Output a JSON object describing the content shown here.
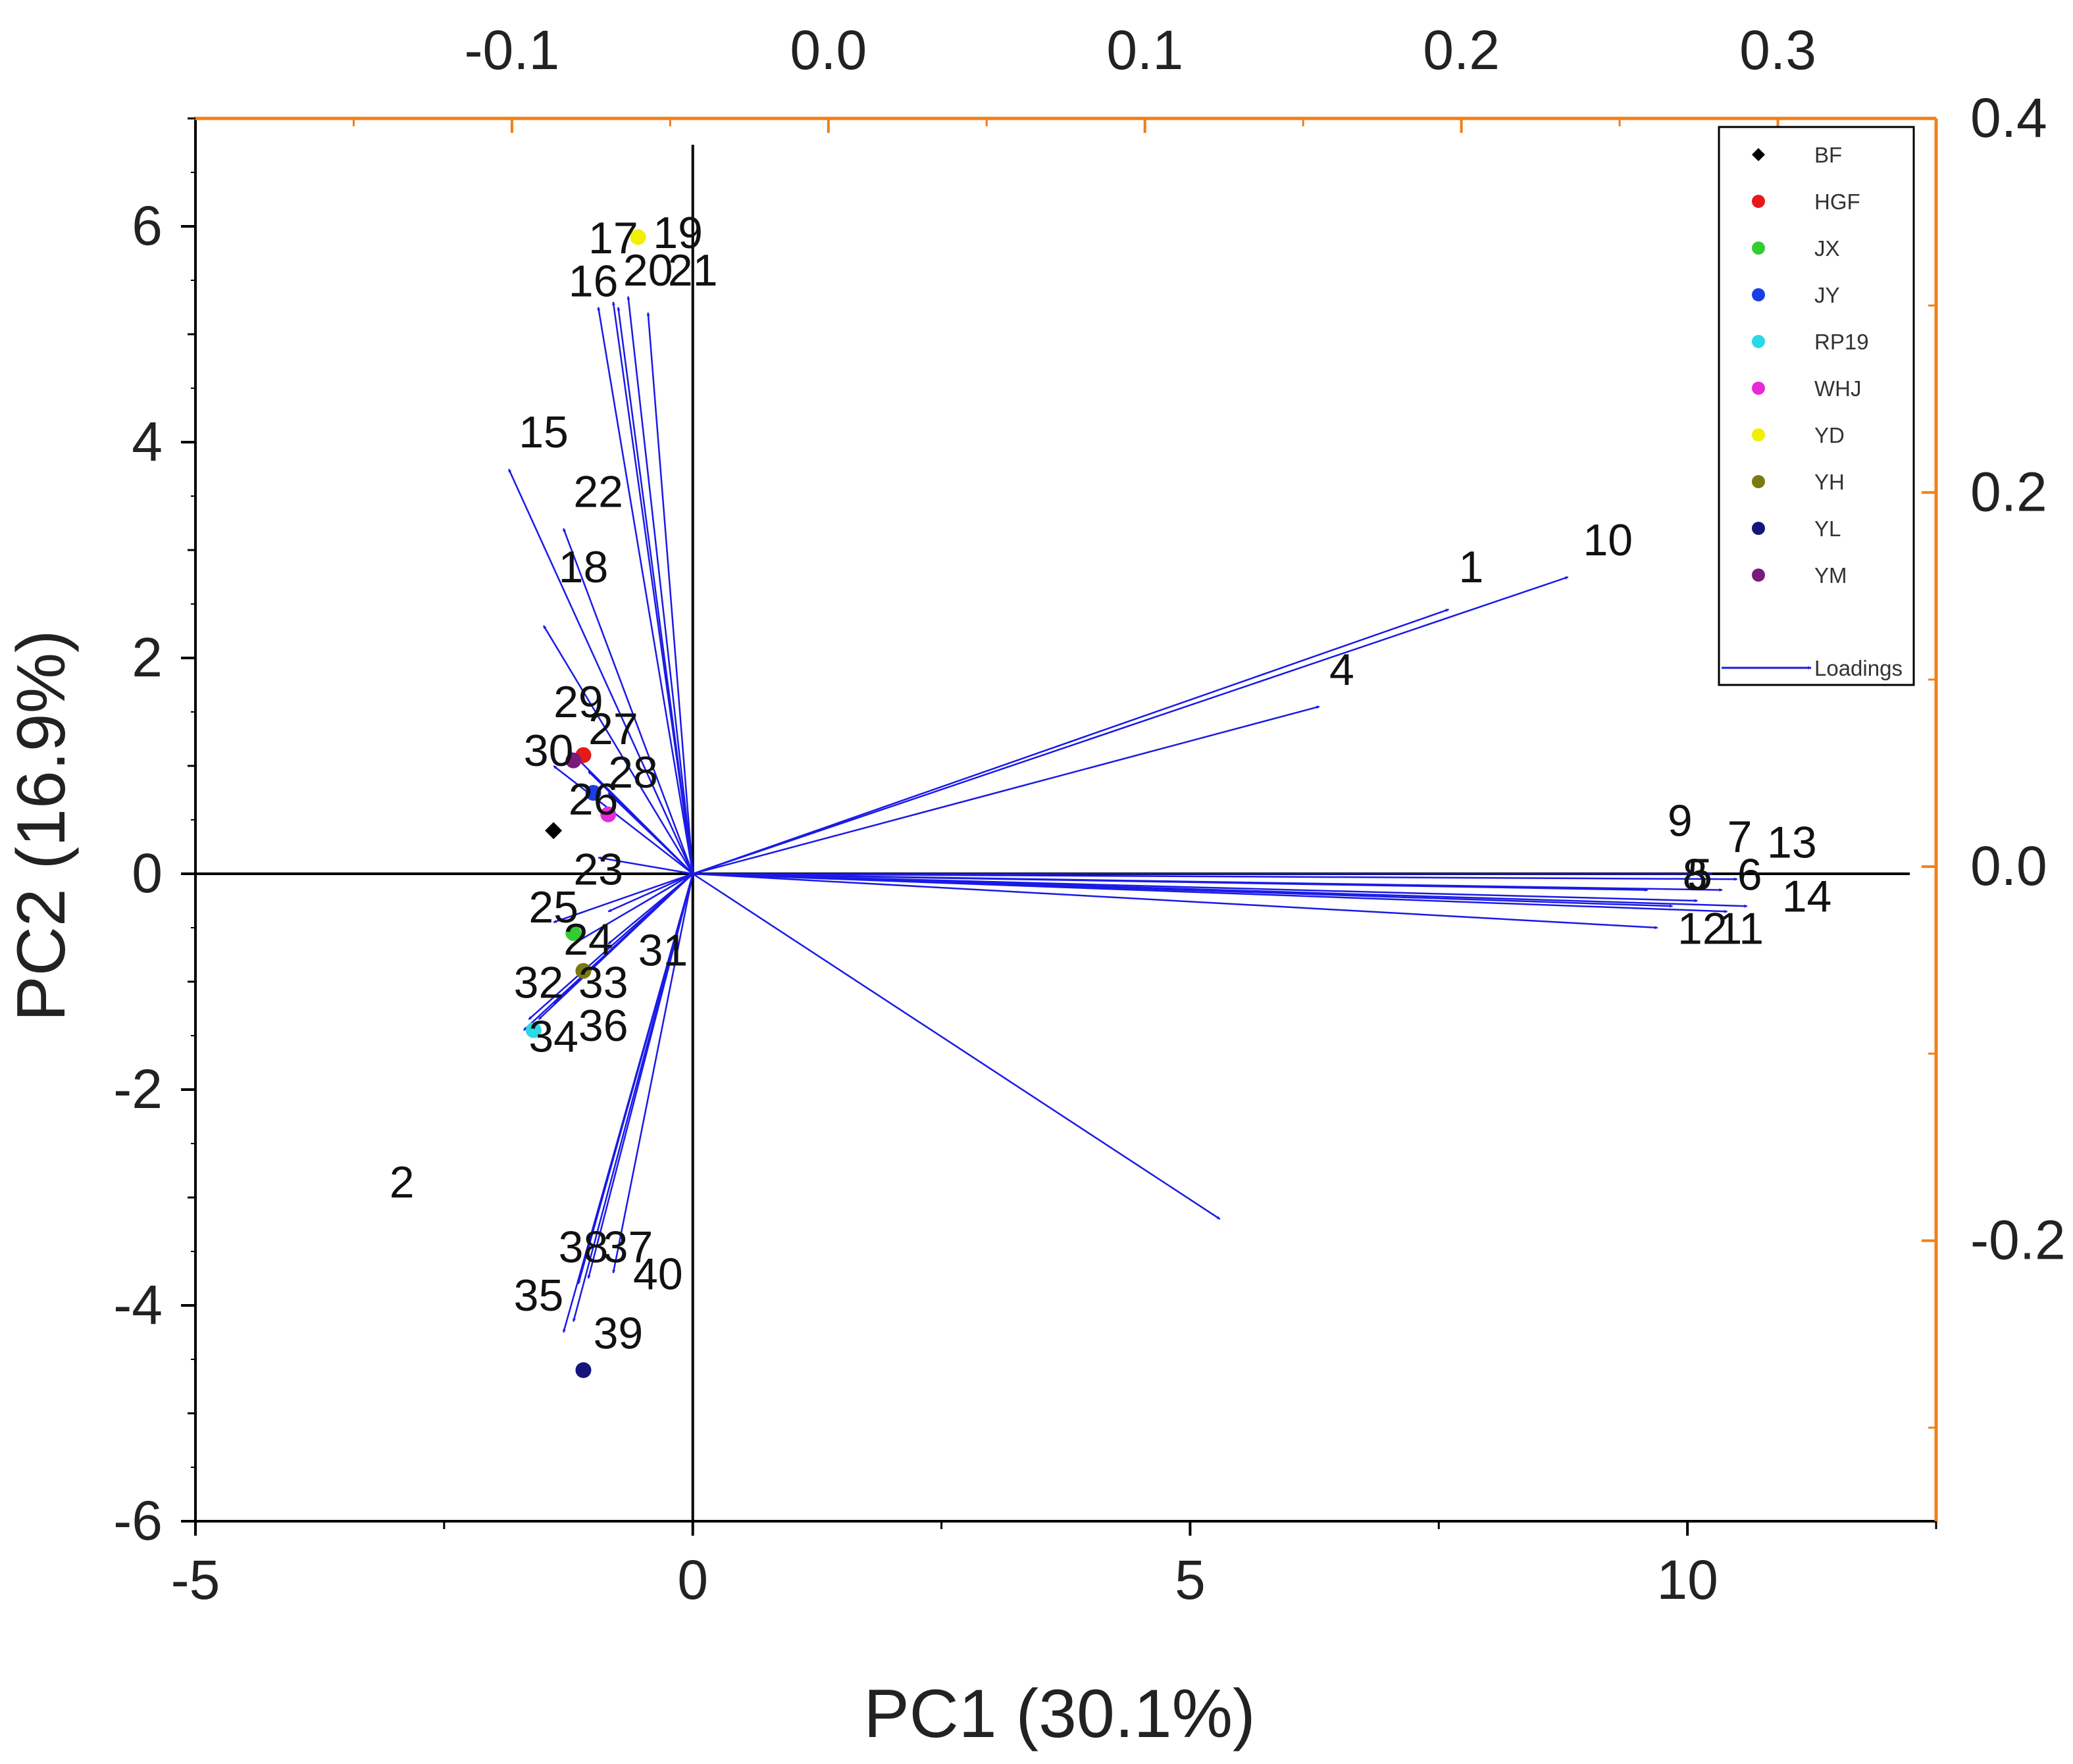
{
  "chart_data": {
    "type": "scatter",
    "title": "",
    "xlabel": "PC1 (30.1%)",
    "ylabel": "PC2 (16.9%)",
    "xlim": [
      -5,
      12.5
    ],
    "ylim": [
      -6,
      7
    ],
    "x_ticks": [
      -5,
      0,
      5,
      10
    ],
    "y_ticks": [
      -6,
      -4,
      -2,
      0,
      2,
      4,
      6
    ],
    "top_axis": {
      "lim": [
        -0.2,
        0.35
      ],
      "ticks": [
        "-0.1",
        "0.0",
        "0.1",
        "0.2",
        "0.3"
      ],
      "tick_values": [
        -0.1,
        0.0,
        0.1,
        0.2,
        0.3
      ],
      "color": "#f07f1a"
    },
    "right_axis": {
      "lim": [
        -0.35,
        0.4
      ],
      "ticks": [
        "-0.2",
        "0.0",
        "0.2",
        "0.4"
      ],
      "tick_values": [
        -0.2,
        0.0,
        0.2,
        0.4
      ],
      "color": "#f07f1a"
    },
    "loading_color": "#1a1ae6",
    "legend_position": "top-right",
    "legend": [
      {
        "name": "BF",
        "color": "#000000",
        "marker": "diamond"
      },
      {
        "name": "HGF",
        "color": "#e6191a",
        "marker": "circle"
      },
      {
        "name": "JX",
        "color": "#33cc33",
        "marker": "circle"
      },
      {
        "name": "JY",
        "color": "#1a3ee6",
        "marker": "circle"
      },
      {
        "name": "RP19",
        "color": "#2ad9e6",
        "marker": "circle"
      },
      {
        "name": "WHJ",
        "color": "#e62ad9",
        "marker": "circle"
      },
      {
        "name": "YD",
        "color": "#f0f000",
        "marker": "circle"
      },
      {
        "name": "YH",
        "color": "#7a7a12",
        "marker": "circle"
      },
      {
        "name": "YL",
        "color": "#14147a",
        "marker": "circle"
      },
      {
        "name": "YM",
        "color": "#7a1a7a",
        "marker": "circle"
      },
      {
        "name": "Loadings",
        "color": "#1a1ae6",
        "marker": "arrow"
      }
    ],
    "samples": [
      {
        "group": "BF",
        "x": -1.4,
        "y": 0.4
      },
      {
        "group": "HGF",
        "x": -1.1,
        "y": 1.1
      },
      {
        "group": "JX",
        "x": -1.2,
        "y": -0.55
      },
      {
        "group": "JY",
        "x": -1.0,
        "y": 0.75
      },
      {
        "group": "RP19",
        "x": -1.6,
        "y": -1.45
      },
      {
        "group": "WHJ",
        "x": -0.85,
        "y": 0.55
      },
      {
        "group": "YD",
        "x": -0.55,
        "y": 5.9
      },
      {
        "group": "YH",
        "x": -1.1,
        "y": -0.9
      },
      {
        "group": "YL",
        "x": -1.1,
        "y": -4.6
      },
      {
        "group": "YM",
        "x": -1.2,
        "y": 1.05
      }
    ],
    "loadings": [
      {
        "label": "1",
        "x": 7.6,
        "y": 2.45
      },
      {
        "label": "2",
        "x": 5.3,
        "y": -3.2
      },
      {
        "label": "4",
        "x": 6.3,
        "y": 1.55
      },
      {
        "label": "5",
        "x": 10.1,
        "y": -0.25
      },
      {
        "label": "6",
        "x": 10.35,
        "y": -0.15
      },
      {
        "label": "7",
        "x": 10.25,
        "y": 0.0
      },
      {
        "label": "8",
        "x": 9.85,
        "y": -0.3
      },
      {
        "label": "9",
        "x": 9.6,
        "y": -0.15
      },
      {
        "label": "10",
        "x": 8.8,
        "y": 2.75
      },
      {
        "label": "11",
        "x": 10.4,
        "y": -0.35
      },
      {
        "label": "12",
        "x": 9.7,
        "y": -0.5
      },
      {
        "label": "13",
        "x": 10.5,
        "y": -0.05
      },
      {
        "label": "14",
        "x": 10.6,
        "y": -0.3
      },
      {
        "label": "15",
        "x": -1.85,
        "y": 3.75
      },
      {
        "label": "16",
        "x": -0.95,
        "y": 5.25
      },
      {
        "label": "17",
        "x": -0.8,
        "y": 5.3
      },
      {
        "label": "18",
        "x": -1.5,
        "y": 2.3
      },
      {
        "label": "19",
        "x": -0.65,
        "y": 5.35
      },
      {
        "label": "20",
        "x": -0.75,
        "y": 5.25
      },
      {
        "label": "21",
        "x": -0.45,
        "y": 5.2
      },
      {
        "label": "22",
        "x": -1.3,
        "y": 3.2
      },
      {
        "label": "23",
        "x": -0.85,
        "y": -0.35
      },
      {
        "label": "24",
        "x": -1.2,
        "y": -0.65
      },
      {
        "label": "25",
        "x": -1.4,
        "y": -0.45
      },
      {
        "label": "26",
        "x": -0.95,
        "y": 0.15
      },
      {
        "label": "27",
        "x": -1.05,
        "y": 0.95
      },
      {
        "label": "28",
        "x": -0.85,
        "y": 0.75
      },
      {
        "label": "29",
        "x": -1.25,
        "y": 1.15
      },
      {
        "label": "30",
        "x": -1.4,
        "y": 1.0
      },
      {
        "label": "31",
        "x": -0.85,
        "y": -0.65
      },
      {
        "label": "32",
        "x": -1.65,
        "y": -1.35
      },
      {
        "label": "33",
        "x": -1.4,
        "y": -1.2
      },
      {
        "label": "34",
        "x": -1.7,
        "y": -1.45
      },
      {
        "label": "35",
        "x": -1.3,
        "y": -4.25
      },
      {
        "label": "36",
        "x": -1.55,
        "y": -1.35
      },
      {
        "label": "37",
        "x": -1.05,
        "y": -3.75
      },
      {
        "label": "38",
        "x": -1.15,
        "y": -3.8
      },
      {
        "label": "39",
        "x": -1.2,
        "y": -4.15
      },
      {
        "label": "40",
        "x": -0.8,
        "y": -3.7
      }
    ],
    "label_x": [
      "1",
      "2",
      "4",
      "5",
      "6",
      "7",
      "8",
      "9",
      "10",
      "11",
      "12",
      "13",
      "14",
      "15",
      "16",
      "17",
      "18",
      "19",
      "20",
      "21",
      "22",
      "23",
      "24",
      "25",
      "26",
      "27",
      "28",
      "29",
      "30",
      "31",
      "32",
      "33",
      "34",
      "35",
      "36",
      "37",
      "38",
      "39",
      "40"
    ],
    "label_y": [
      7.7,
      -3.05,
      6.4,
      10.0,
      10.5,
      10.4,
      9.95,
      9.8,
      8.95,
      10.3,
      9.9,
      10.8,
      10.95,
      -1.75,
      -1.25,
      -1.05,
      -1.35,
      -0.4,
      -0.7,
      -0.25,
      -1.2,
      -1.2,
      -1.3,
      -1.65,
      -1.25,
      -1.05,
      -0.85,
      -1.4,
      -1.7,
      -0.55,
      -1.8,
      -1.15,
      -1.65,
      -1.8,
      -1.15,
      -0.9,
      -1.35,
      -1.0,
      -0.6
    ],
    "label_pos_y": [
      2.7,
      -3.0,
      1.75,
      -0.15,
      -0.15,
      0.2,
      -0.15,
      0.35,
      2.95,
      -0.65,
      -0.65,
      0.15,
      -0.35,
      3.95,
      5.35,
      5.75,
      2.7,
      5.8,
      5.45,
      5.45,
      3.4,
      -0.1,
      -0.75,
      -0.45,
      0.55,
      1.2,
      0.8,
      1.45,
      1.0,
      -0.85,
      -1.15,
      -1.15,
      -1.65,
      -4.05,
      -1.55,
      -3.6,
      -3.6,
      -4.4,
      -3.85
    ]
  }
}
